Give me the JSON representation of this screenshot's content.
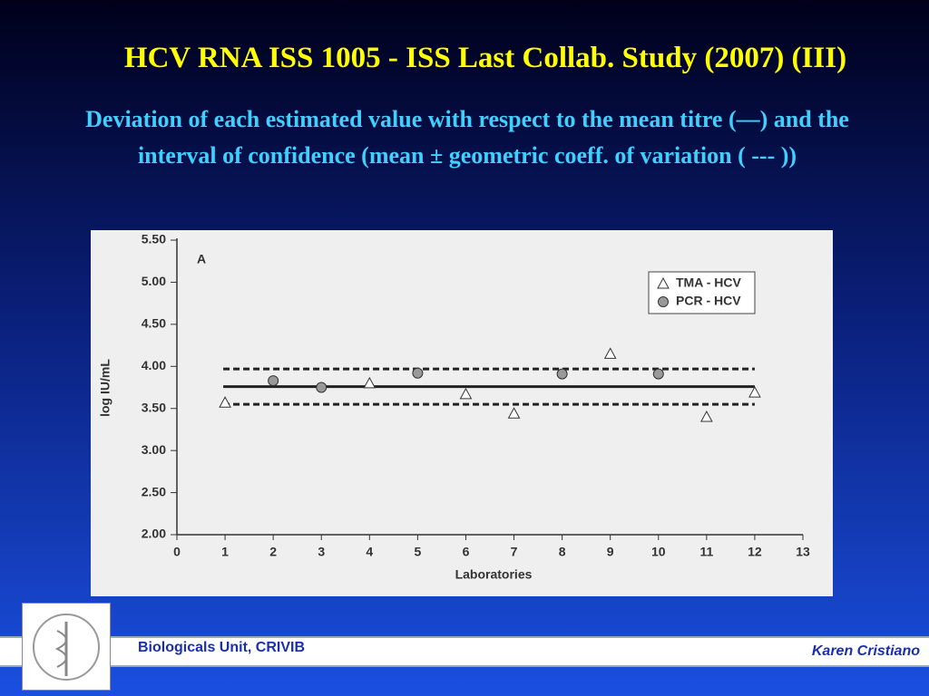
{
  "slide": {
    "title": "HCV RNA ISS 1005 - ISS Last Collab. Study (2007) (III)",
    "subtitle": "Deviation of each estimated value with respect to the mean titre (—) and the interval of confidence  (mean ± geometric coeff. of variation ( --- ))",
    "footer_left": "Biologicals Unit, CRIVIB",
    "footer_right": "Karen Cristiano"
  },
  "chart_data": {
    "type": "scatter",
    "panel_label": "A",
    "x_label": "Laboratories",
    "y_label": "log IU/mL",
    "xlim": [
      0,
      13
    ],
    "xticks": [
      0,
      1,
      2,
      3,
      4,
      5,
      6,
      7,
      8,
      9,
      10,
      11,
      12,
      13
    ],
    "ylim": [
      2,
      5.5
    ],
    "yticks": [
      {
        "value": 2,
        "label": "2.00"
      },
      {
        "value": 2.5,
        "label": "2.50"
      },
      {
        "value": 3,
        "label": "3.00"
      },
      {
        "value": 3.5,
        "label": "3.50"
      },
      {
        "value": 4,
        "label": "4.00"
      },
      {
        "value": 4.5,
        "label": "4.50"
      },
      {
        "value": 5,
        "label": "5.00"
      },
      {
        "value": 5.5,
        "label": "5.50"
      }
    ],
    "series": [
      {
        "name": "TMA - HCV",
        "marker": "triangle",
        "color": "#ffffff",
        "x": [
          1,
          4,
          6,
          7,
          9,
          11,
          12
        ],
        "values": [
          3.57,
          3.8,
          3.67,
          3.44,
          4.15,
          3.4,
          3.69
        ]
      },
      {
        "name": "PCR - HCV",
        "marker": "circle",
        "color": "#999999",
        "x": [
          2,
          3,
          5,
          8,
          10
        ],
        "values": [
          3.83,
          3.75,
          3.92,
          3.91,
          3.91
        ]
      }
    ],
    "reference_lines": [
      {
        "value": 3.76,
        "dashed": false,
        "span": [
          1,
          12
        ]
      },
      {
        "value": 3.97,
        "dashed": true,
        "span": [
          1,
          12
        ]
      },
      {
        "value": 3.55,
        "dashed": true,
        "span": [
          1,
          12
        ]
      }
    ]
  }
}
